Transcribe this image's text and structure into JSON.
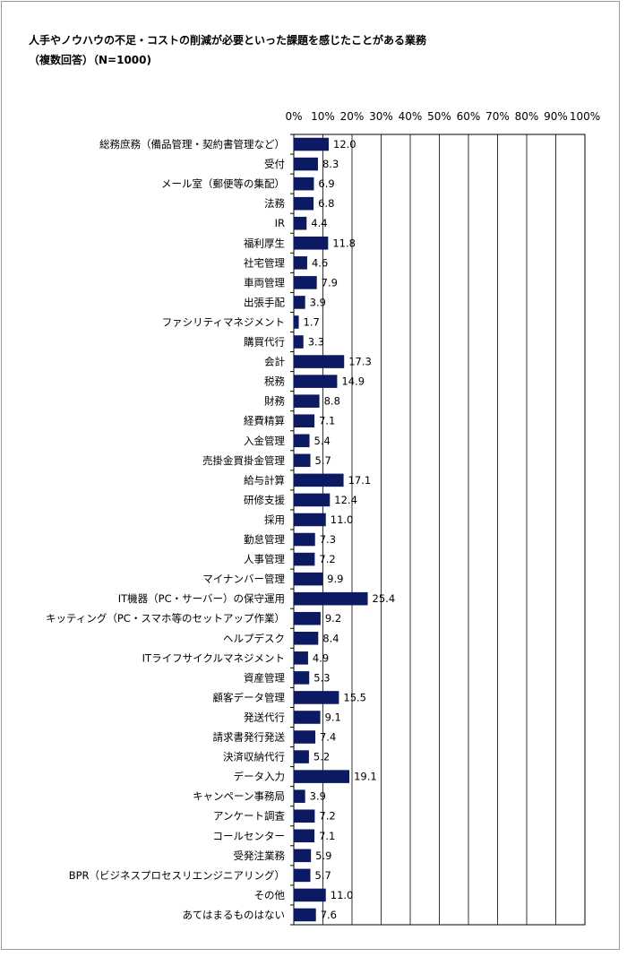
{
  "title": "人手やノウハウの不足・コストの削減が必要といった課題を感じたことがある業務",
  "subtitle": "（複数回答）（N=1000)",
  "chart_data": {
    "type": "bar",
    "orientation": "horizontal",
    "xlim": [
      0,
      100
    ],
    "x_tick_labels": [
      "0%",
      "10%",
      "20%",
      "30%",
      "40%",
      "50%",
      "60%",
      "70%",
      "80%",
      "90%",
      "100%"
    ],
    "x_ticks": [
      0,
      10,
      20,
      30,
      40,
      50,
      60,
      70,
      80,
      90,
      100
    ],
    "grid": "vertical",
    "bar_color": "#0b1a63",
    "categories": [
      "総務庶務（備品管理・契約書管理など）",
      "受付",
      "メール室（郵便等の集配）",
      "法務",
      "IR",
      "福利厚生",
      "社宅管理",
      "車両管理",
      "出張手配",
      "ファシリティマネジメント",
      "購買代行",
      "会計",
      "税務",
      "財務",
      "経費精算",
      "入金管理",
      "売掛金買掛金管理",
      "給与計算",
      "研修支援",
      "採用",
      "勤怠管理",
      "人事管理",
      "マイナンバー管理",
      "IT機器（PC・サーバー）の保守運用",
      "キッティング（PC・スマホ等のセットアップ作業）",
      "ヘルプデスク",
      "ITライフサイクルマネジメント",
      "資産管理",
      "顧客データ管理",
      "発送代行",
      "請求書発行発送",
      "決済収納代行",
      "データ入力",
      "キャンペーン事務局",
      "アンケート調査",
      "コールセンター",
      "受発注業務",
      "BPR（ビジネスプロセスリエンジニアリング）",
      "その他",
      "あてはまるものはない"
    ],
    "values": [
      12.0,
      8.3,
      6.9,
      6.8,
      4.4,
      11.8,
      4.6,
      7.9,
      3.9,
      1.7,
      3.3,
      17.3,
      14.9,
      8.8,
      7.1,
      5.4,
      5.7,
      17.1,
      12.4,
      11.0,
      7.3,
      7.2,
      9.9,
      25.4,
      9.2,
      8.4,
      4.9,
      5.3,
      15.5,
      9.1,
      7.4,
      5.2,
      19.1,
      3.9,
      7.2,
      7.1,
      5.9,
      5.7,
      11.0,
      7.6
    ],
    "value_labels": [
      "12.0",
      "8.3",
      "6.9",
      "6.8",
      "4.4",
      "11.8",
      "4.6",
      "7.9",
      "3.9",
      "1.7",
      "3.3",
      "17.3",
      "14.9",
      "8.8",
      "7.1",
      "5.4",
      "5.7",
      "17.1",
      "12.4",
      "11.0",
      "7.3",
      "7.2",
      "9.9",
      "25.4",
      "9.2",
      "8.4",
      "4.9",
      "5.3",
      "15.5",
      "9.1",
      "7.4",
      "5.2",
      "19.1",
      "3.9",
      "7.2",
      "7.1",
      "5.9",
      "5.7",
      "11.0",
      "7.6"
    ]
  }
}
